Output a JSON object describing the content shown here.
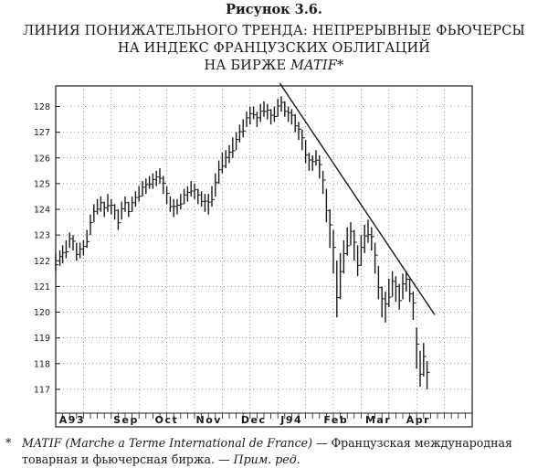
{
  "figure_label": "Рисунок 3.6.",
  "title": {
    "line1": "ЛИНИЯ ПОНИЖАТЕЛЬНОГО ТРЕНДА: НЕПРЕРЫВНЫЕ ФЬЮЧЕРСЫ",
    "line2": "НА ИНДЕКС ФРАНЦУЗСКИХ ОБЛИГАЦИЙ",
    "line3_prefix": "НА БИРЖЕ ",
    "line3_em": "MATIF*"
  },
  "footnote": {
    "marker": "*",
    "italic_start": "MATIF (Marche a Terme International de France)",
    "text": " — Французская международная товарная и фьючерсная биржа. — ",
    "italic_end": "Прим. ред."
  },
  "colors": {
    "ink": "#1a1a1a",
    "grid": "#555555",
    "paper": "#ffffff"
  },
  "chart_data": {
    "type": "bar",
    "subtype": "ohlc-price-bars",
    "title": "",
    "xlabel": "",
    "ylabel": "",
    "x_unit": "weeks from start of chart",
    "xlim": [
      0,
      60
    ],
    "ylim": [
      116.5,
      128.8
    ],
    "grid": true,
    "y_ticks": [
      117,
      118,
      119,
      120,
      121,
      122,
      123,
      124,
      125,
      126,
      127,
      128
    ],
    "x_tick_labels": [
      {
        "label": "A93",
        "x": 0.5
      },
      {
        "label": "Sep",
        "x": 8.3
      },
      {
        "label": "Oct",
        "x": 14.3
      },
      {
        "label": "Nov",
        "x": 20.2
      },
      {
        "label": "Dec",
        "x": 26.7
      },
      {
        "label": "J94",
        "x": 32.4
      },
      {
        "label": "Feb",
        "x": 38.6
      },
      {
        "label": "Mar",
        "x": 44.6
      },
      {
        "label": "Apr",
        "x": 50.5
      }
    ],
    "series": [
      {
        "values": [
          {
            "x": 0.0,
            "low": 121.6,
            "high": 122.3
          },
          {
            "x": 0.6,
            "low": 121.8,
            "high": 122.4
          },
          {
            "x": 1.0,
            "low": 121.9,
            "high": 122.6
          },
          {
            "x": 1.5,
            "low": 122.1,
            "high": 122.8
          },
          {
            "x": 2.0,
            "low": 122.5,
            "high": 123.1
          },
          {
            "x": 2.5,
            "low": 122.4,
            "high": 123.0
          },
          {
            "x": 3.0,
            "low": 122.0,
            "high": 122.7
          },
          {
            "x": 3.5,
            "low": 122.1,
            "high": 122.7
          },
          {
            "x": 4.0,
            "low": 122.2,
            "high": 122.8
          },
          {
            "x": 4.5,
            "low": 122.5,
            "high": 123.2
          },
          {
            "x": 5.0,
            "low": 123.0,
            "high": 123.8
          },
          {
            "x": 5.5,
            "low": 123.5,
            "high": 124.2
          },
          {
            "x": 6.0,
            "low": 123.8,
            "high": 124.4
          },
          {
            "x": 6.5,
            "low": 123.9,
            "high": 124.5
          },
          {
            "x": 7.0,
            "low": 123.7,
            "high": 124.3
          },
          {
            "x": 7.5,
            "low": 123.9,
            "high": 124.6
          },
          {
            "x": 8.0,
            "low": 123.8,
            "high": 124.4
          },
          {
            "x": 8.5,
            "low": 123.6,
            "high": 124.2
          },
          {
            "x": 9.0,
            "low": 123.2,
            "high": 124.0
          },
          {
            "x": 9.5,
            "low": 123.6,
            "high": 124.3
          },
          {
            "x": 10.0,
            "low": 123.9,
            "high": 124.5
          },
          {
            "x": 10.5,
            "low": 123.7,
            "high": 124.3
          },
          {
            "x": 11.0,
            "low": 123.9,
            "high": 124.5
          },
          {
            "x": 11.5,
            "low": 124.1,
            "high": 124.7
          },
          {
            "x": 12.0,
            "low": 124.3,
            "high": 124.9
          },
          {
            "x": 12.5,
            "low": 124.5,
            "high": 125.1
          },
          {
            "x": 13.0,
            "low": 124.6,
            "high": 125.2
          },
          {
            "x": 13.5,
            "low": 124.8,
            "high": 125.3
          },
          {
            "x": 14.0,
            "low": 124.8,
            "high": 125.4
          },
          {
            "x": 14.5,
            "low": 124.9,
            "high": 125.5
          },
          {
            "x": 15.0,
            "low": 125.0,
            "high": 125.6
          },
          {
            "x": 15.5,
            "low": 124.6,
            "high": 125.3
          },
          {
            "x": 16.0,
            "low": 124.2,
            "high": 124.9
          },
          {
            "x": 16.5,
            "low": 123.9,
            "high": 124.5
          },
          {
            "x": 17.0,
            "low": 123.7,
            "high": 124.4
          },
          {
            "x": 17.5,
            "low": 123.8,
            "high": 124.4
          },
          {
            "x": 18.0,
            "low": 124.0,
            "high": 124.6
          },
          {
            "x": 18.5,
            "low": 124.2,
            "high": 124.8
          },
          {
            "x": 19.0,
            "low": 124.3,
            "high": 124.9
          },
          {
            "x": 19.5,
            "low": 124.5,
            "high": 125.1
          },
          {
            "x": 20.0,
            "low": 124.4,
            "high": 125.0
          },
          {
            "x": 20.5,
            "low": 124.2,
            "high": 124.8
          },
          {
            "x": 21.0,
            "low": 124.1,
            "high": 124.7
          },
          {
            "x": 21.5,
            "low": 123.9,
            "high": 124.6
          },
          {
            "x": 22.0,
            "low": 123.8,
            "high": 124.6
          },
          {
            "x": 22.5,
            "low": 124.1,
            "high": 124.9
          },
          {
            "x": 23.0,
            "low": 124.5,
            "high": 125.4
          },
          {
            "x": 23.5,
            "low": 125.0,
            "high": 125.9
          },
          {
            "x": 24.0,
            "low": 125.4,
            "high": 126.2
          },
          {
            "x": 24.5,
            "low": 125.6,
            "high": 126.3
          },
          {
            "x": 25.0,
            "low": 125.8,
            "high": 126.5
          },
          {
            "x": 25.5,
            "low": 126.0,
            "high": 126.8
          },
          {
            "x": 26.0,
            "low": 126.3,
            "high": 127.0
          },
          {
            "x": 26.5,
            "low": 126.6,
            "high": 127.3
          },
          {
            "x": 27.0,
            "low": 126.8,
            "high": 127.5
          },
          {
            "x": 27.5,
            "low": 127.2,
            "high": 127.8
          },
          {
            "x": 28.0,
            "low": 127.3,
            "high": 128.0
          },
          {
            "x": 28.5,
            "low": 127.5,
            "high": 128.0
          },
          {
            "x": 29.0,
            "low": 127.2,
            "high": 127.8
          },
          {
            "x": 29.5,
            "low": 127.4,
            "high": 128.1
          },
          {
            "x": 30.0,
            "low": 127.6,
            "high": 128.2
          },
          {
            "x": 30.5,
            "low": 127.5,
            "high": 128.1
          },
          {
            "x": 31.0,
            "low": 127.3,
            "high": 127.9
          },
          {
            "x": 31.5,
            "low": 127.4,
            "high": 128.0
          },
          {
            "x": 32.0,
            "low": 127.6,
            "high": 128.3
          },
          {
            "x": 32.5,
            "low": 127.8,
            "high": 128.4
          },
          {
            "x": 33.0,
            "low": 127.6,
            "high": 128.2
          },
          {
            "x": 33.5,
            "low": 127.4,
            "high": 128.0
          },
          {
            "x": 34.0,
            "low": 127.3,
            "high": 127.9
          },
          {
            "x": 34.5,
            "low": 127.0,
            "high": 127.7
          },
          {
            "x": 35.0,
            "low": 126.7,
            "high": 127.4
          },
          {
            "x": 35.5,
            "low": 126.3,
            "high": 127.1
          },
          {
            "x": 36.0,
            "low": 125.8,
            "high": 126.7
          },
          {
            "x": 36.5,
            "low": 125.5,
            "high": 126.2
          },
          {
            "x": 37.0,
            "low": 125.5,
            "high": 126.1
          },
          {
            "x": 37.5,
            "low": 125.7,
            "high": 126.3
          },
          {
            "x": 38.0,
            "low": 125.2,
            "high": 126.1
          },
          {
            "x": 38.5,
            "low": 124.6,
            "high": 125.5
          },
          {
            "x": 39.0,
            "low": 123.5,
            "high": 124.8
          },
          {
            "x": 39.5,
            "low": 122.5,
            "high": 124.0
          },
          {
            "x": 40.0,
            "low": 121.5,
            "high": 123.2
          },
          {
            "x": 40.5,
            "low": 119.8,
            "high": 122.0
          },
          {
            "x": 41.0,
            "low": 120.5,
            "high": 122.3
          },
          {
            "x": 41.5,
            "low": 121.5,
            "high": 122.8
          },
          {
            "x": 42.0,
            "low": 122.2,
            "high": 123.3
          },
          {
            "x": 42.5,
            "low": 122.6,
            "high": 123.5
          },
          {
            "x": 43.0,
            "low": 122.0,
            "high": 123.2
          },
          {
            "x": 43.5,
            "low": 121.4,
            "high": 122.6
          },
          {
            "x": 44.0,
            "low": 121.8,
            "high": 123.0
          },
          {
            "x": 44.5,
            "low": 122.3,
            "high": 123.4
          },
          {
            "x": 45.0,
            "low": 122.7,
            "high": 123.6
          },
          {
            "x": 45.5,
            "low": 122.4,
            "high": 123.3
          },
          {
            "x": 46.0,
            "low": 121.5,
            "high": 122.7
          },
          {
            "x": 46.5,
            "low": 120.5,
            "high": 121.8
          },
          {
            "x": 47.0,
            "low": 119.8,
            "high": 121.0
          },
          {
            "x": 47.5,
            "low": 119.6,
            "high": 120.8
          },
          {
            "x": 48.0,
            "low": 120.2,
            "high": 121.3
          },
          {
            "x": 48.5,
            "low": 120.6,
            "high": 121.6
          },
          {
            "x": 49.0,
            "low": 120.4,
            "high": 121.4
          },
          {
            "x": 49.5,
            "low": 120.1,
            "high": 121.1
          },
          {
            "x": 50.0,
            "low": 120.5,
            "high": 121.5
          },
          {
            "x": 50.5,
            "low": 120.8,
            "high": 121.6
          },
          {
            "x": 51.0,
            "low": 120.4,
            "high": 121.3
          },
          {
            "x": 51.5,
            "low": 119.7,
            "high": 120.8
          },
          {
            "x": 52.0,
            "low": 117.8,
            "high": 119.4
          },
          {
            "x": 52.5,
            "low": 117.1,
            "high": 118.5
          },
          {
            "x": 53.0,
            "low": 117.5,
            "high": 118.8
          },
          {
            "x": 53.5,
            "low": 117.0,
            "high": 118.1
          }
        ]
      }
    ],
    "annotations": [
      {
        "type": "trendline",
        "label": "",
        "from": {
          "x": 32.3,
          "y": 128.9
        },
        "to": {
          "x": 54.6,
          "y": 119.9
        }
      }
    ]
  }
}
